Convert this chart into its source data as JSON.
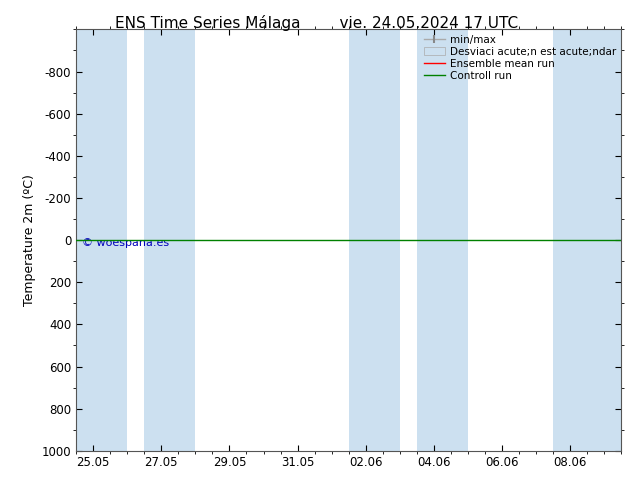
{
  "title_left": "ENS Time Series Málaga",
  "title_right": "vie. 24.05.2024 17 UTC",
  "ylabel": "Temperature 2m (ºC)",
  "ylim_bottom": 1000,
  "ylim_top": -1000,
  "yticks": [
    -800,
    -600,
    -400,
    -200,
    0,
    200,
    400,
    600,
    800,
    1000
  ],
  "xlabels": [
    "25.05",
    "27.05",
    "29.05",
    "31.05",
    "02.06",
    "04.06",
    "06.06",
    "08.06"
  ],
  "x_positions": [
    0,
    2,
    4,
    6,
    8,
    10,
    12,
    14
  ],
  "x_min": -0.5,
  "x_max": 15.5,
  "shaded_bands": [
    [
      -0.5,
      1.0
    ],
    [
      1.5,
      3.0
    ],
    [
      7.5,
      9.0
    ],
    [
      9.5,
      11.0
    ],
    [
      13.5,
      15.5
    ]
  ],
  "watermark": "© woespana.es",
  "watermark_color": "#0000bb",
  "line_color_ensemble": "#ff0000",
  "line_color_control": "#008000",
  "background_color": "#ffffff",
  "shaded_color": "#cce0f0",
  "legend_label_minmax": "min/max",
  "legend_label_std": "Desviaci acute;n est acute;ndar",
  "legend_label_ensemble": "Ensemble mean run",
  "legend_label_control": "Controll run",
  "title_fontsize": 11,
  "axis_fontsize": 9,
  "tick_fontsize": 8.5
}
